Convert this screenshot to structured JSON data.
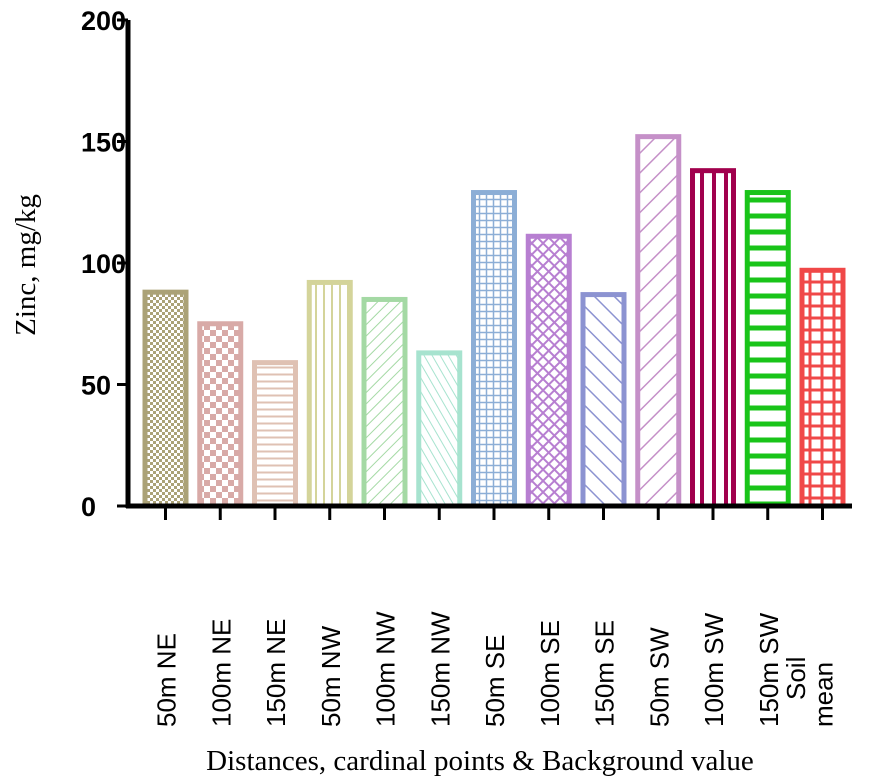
{
  "chart_data": {
    "type": "bar",
    "title": "",
    "xlabel": "Distances, cardinal points & Background value",
    "ylabel": "Zinc, mg/kg",
    "ylim": [
      0,
      200
    ],
    "yticks": [
      "0",
      "50",
      "100",
      "150",
      "200"
    ],
    "grid": false,
    "categories": [
      "50m NE",
      "100m NE",
      "150m NE",
      "50m NW",
      "100m NW",
      "150m NW",
      "50m SE",
      "100m SE",
      "150m SE",
      "50m SW",
      "100m SW",
      "150m SW",
      "mean"
    ],
    "overlapped_label_text": "Soil",
    "values": [
      88,
      75,
      59,
      92,
      85,
      63,
      129,
      111,
      87,
      152,
      138,
      129,
      97
    ],
    "colors": [
      "#aba277",
      "#d8aaa7",
      "#dfc1b3",
      "#d4d49a",
      "#a4d9a4",
      "#a7e3cf",
      "#8caed6",
      "#b77fd1",
      "#8c93d1",
      "#c590c8",
      "#a1004d",
      "#19c419",
      "#f04848"
    ],
    "patterns": [
      "checker-fine",
      "checker",
      "hlines",
      "vlines",
      "diag-right",
      "diag-left",
      "grid-fine",
      "crosshatch",
      "diag-left-wide",
      "diag-right-wide",
      "vlines-wide",
      "hlines-wide",
      "grid-wide"
    ]
  }
}
